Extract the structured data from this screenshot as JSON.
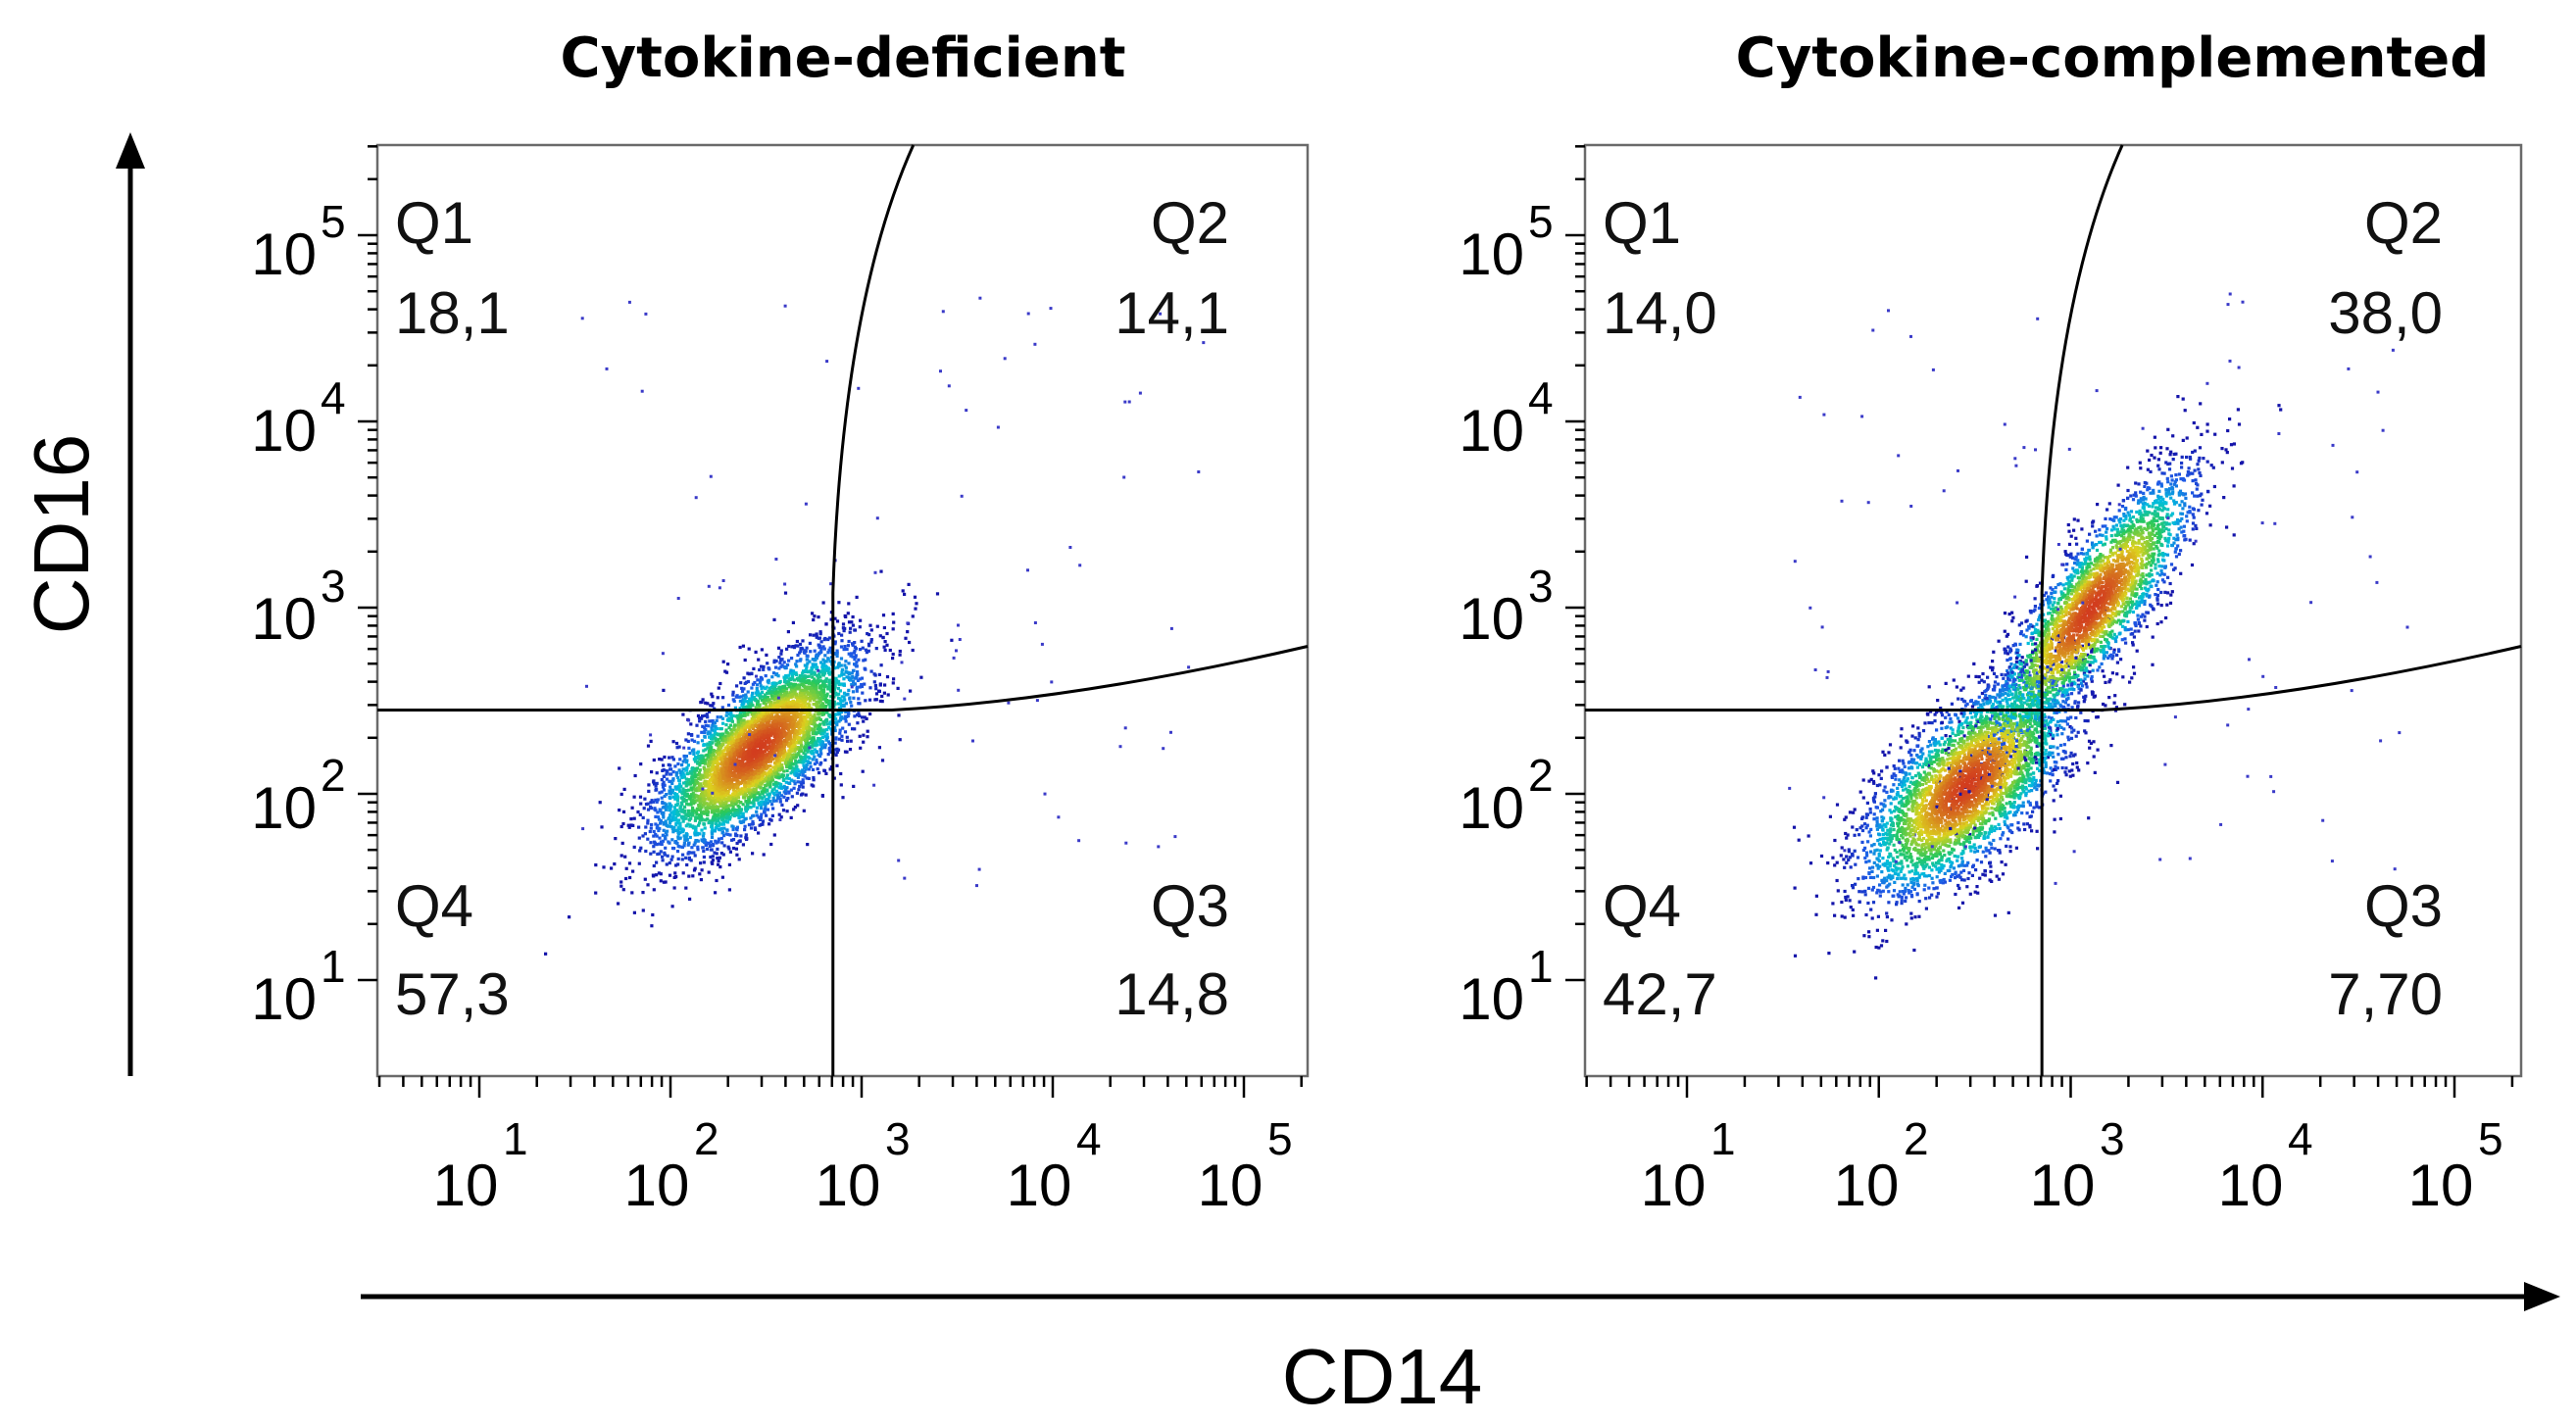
{
  "axes": {
    "xlabel": "CD14",
    "ylabel": "CD16"
  },
  "chart_data": [
    {
      "type": "scatter",
      "subtype": "flow-cytometry-density",
      "title": "Cytokine-deficient",
      "xlabel": "CD14",
      "ylabel": "CD16",
      "xscale": "log",
      "yscale": "log",
      "x_ticks": [
        "10",
        "10",
        "10",
        "10",
        "10"
      ],
      "x_tick_exponents": [
        "1",
        "2",
        "3",
        "4",
        "5"
      ],
      "y_ticks": [
        "10",
        "10",
        "10",
        "10",
        "10"
      ],
      "y_tick_exponents": [
        "5",
        "4",
        "3",
        "2",
        "1"
      ],
      "gate": {
        "x_threshold_log10": 2.85,
        "y_threshold_log10": 2.45
      },
      "population": {
        "center_log10": [
          2.45,
          2.25
        ],
        "spread_log10": [
          0.5,
          0.5
        ]
      },
      "quadrants": [
        {
          "name": "Q1",
          "value": "18,1"
        },
        {
          "name": "Q2",
          "value": "14,1"
        },
        {
          "name": "Q3",
          "value": "14,8"
        },
        {
          "name": "Q4",
          "value": "57,3"
        }
      ]
    },
    {
      "type": "scatter",
      "subtype": "flow-cytometry-density",
      "title": "Cytokine-complemented",
      "xlabel": "CD14",
      "ylabel": "CD16",
      "xscale": "log",
      "yscale": "log",
      "x_ticks": [
        "10",
        "10",
        "10",
        "10",
        "10"
      ],
      "x_tick_exponents": [
        "1",
        "2",
        "3",
        "4",
        "5"
      ],
      "y_ticks": [
        "10",
        "10",
        "10",
        "10",
        "10"
      ],
      "y_tick_exponents": [
        "5",
        "4",
        "3",
        "2",
        "1"
      ],
      "gate": {
        "x_threshold_log10": 2.85,
        "y_threshold_log10": 2.45
      },
      "population": {
        "center_log10": [
          2.6,
          2.5
        ],
        "spread_log10": [
          0.6,
          0.75
        ]
      },
      "quadrants": [
        {
          "name": "Q1",
          "value": "14,0"
        },
        {
          "name": "Q2",
          "value": "38,0"
        },
        {
          "name": "Q3",
          "value": "7,70"
        },
        {
          "name": "Q4",
          "value": "42,7"
        }
      ]
    }
  ]
}
